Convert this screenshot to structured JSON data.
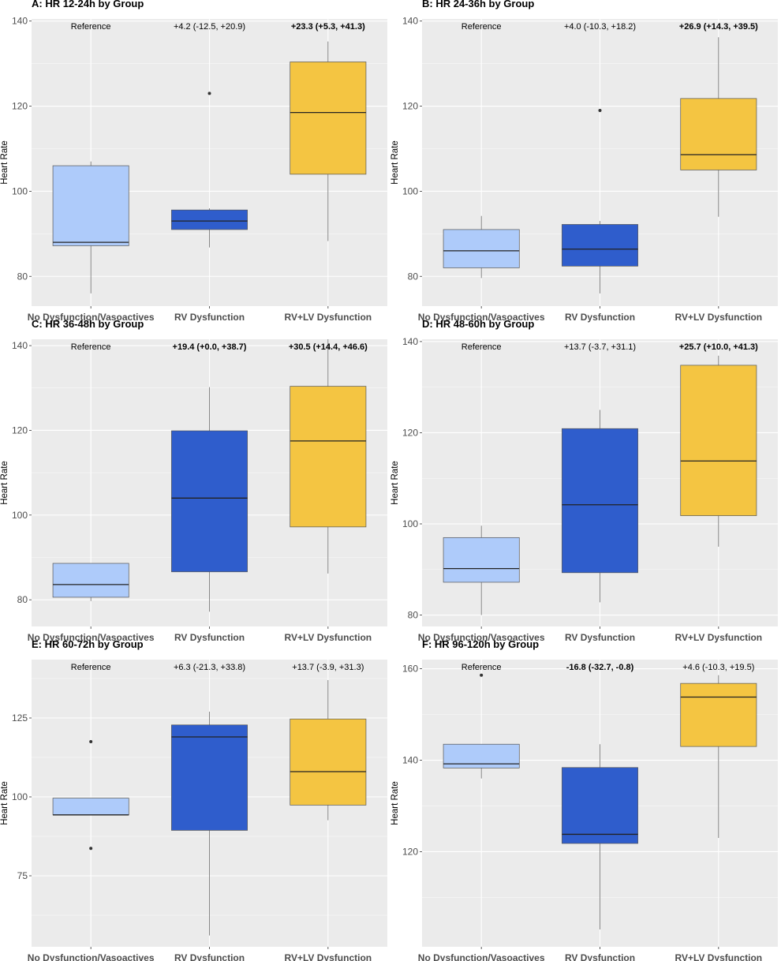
{
  "colors": {
    "panel_bg": "#EBEBEB",
    "grid": "#FFFFFF",
    "groups": [
      "#AECBFA",
      "#2F5DCC",
      "#F4C542"
    ],
    "box_border": "#555555",
    "whisker": "#555555"
  },
  "chart_data": [
    {
      "type": "box",
      "title": "A: HR 12-24h by Group",
      "ylabel": "Heart Rate",
      "ylim": [
        73,
        140.5
      ],
      "yticks": [
        80,
        100,
        120,
        140
      ],
      "categories": [
        "No Dysfunction/Vasoactives",
        "RV Dysfunction",
        "RV+LV Dysfunction"
      ],
      "annotations": [
        {
          "text": "Reference",
          "bold": false
        },
        {
          "text": "+4.2 (-12.5, +20.9)",
          "bold": false
        },
        {
          "text": "+23.3 (+5.3, +41.3)",
          "bold": true
        }
      ],
      "boxes": [
        {
          "low": 76,
          "q1": 87.2,
          "median": 88,
          "q3": 106,
          "high": 107,
          "outliers": []
        },
        {
          "low": 86.8,
          "q1": 91,
          "median": 93,
          "q3": 95.6,
          "high": 96,
          "outliers": [
            123
          ]
        },
        {
          "low": 88.3,
          "q1": 104,
          "median": 118.5,
          "q3": 130.4,
          "high": 135.2,
          "outliers": []
        }
      ]
    },
    {
      "type": "box",
      "title": "B: HR 24-36h by Group",
      "ylabel": "Heart Rate",
      "ylim": [
        73,
        140.5
      ],
      "yticks": [
        80,
        100,
        120,
        140
      ],
      "categories": [
        "No Dysfunction/Vasoactives",
        "RV Dysfunction",
        "RV+LV Dysfunction"
      ],
      "annotations": [
        {
          "text": "Reference",
          "bold": false
        },
        {
          "text": "+4.0 (-10.3, +18.2)",
          "bold": false
        },
        {
          "text": "+26.9 (+14.3, +39.5)",
          "bold": true
        }
      ],
      "boxes": [
        {
          "low": 79.6,
          "q1": 82,
          "median": 86,
          "q3": 91,
          "high": 94.2,
          "outliers": []
        },
        {
          "low": 76,
          "q1": 82.4,
          "median": 86.4,
          "q3": 92.2,
          "high": 93,
          "outliers": [
            119
          ]
        },
        {
          "low": 94,
          "q1": 105,
          "median": 108.6,
          "q3": 121.8,
          "high": 136.2,
          "outliers": []
        }
      ]
    },
    {
      "type": "box",
      "title": "C: HR 36-48h by Group",
      "ylabel": "Heart Rate",
      "ylim": [
        73.7,
        141.5
      ],
      "yticks": [
        80,
        100,
        120,
        140
      ],
      "categories": [
        "No Dysfunction/Vasoactives",
        "RV Dysfunction",
        "RV+LV Dysfunction"
      ],
      "annotations": [
        {
          "text": "Reference",
          "bold": false
        },
        {
          "text": "+19.4 (+0.0, +38.7)",
          "bold": true
        },
        {
          "text": "+30.5 (+14.4, +46.6)",
          "bold": true
        }
      ],
      "boxes": [
        {
          "low": 79.7,
          "q1": 80.6,
          "median": 83.6,
          "q3": 88.6,
          "high": 88.6,
          "outliers": []
        },
        {
          "low": 77.2,
          "q1": 86.6,
          "median": 104,
          "q3": 119.9,
          "high": 130.2,
          "outliers": []
        },
        {
          "low": 86.2,
          "q1": 97.2,
          "median": 117.5,
          "q3": 130.4,
          "high": 141.5,
          "outliers": []
        }
      ]
    },
    {
      "type": "box",
      "title": "D: HR 48-60h by Group",
      "ylabel": "Heart Rate",
      "ylim": [
        77.5,
        140.5
      ],
      "yticks": [
        80,
        100,
        120,
        140
      ],
      "categories": [
        "No Dysfunction/Vasoactives",
        "RV Dysfunction",
        "RV+LV Dysfunction"
      ],
      "annotations": [
        {
          "text": "Reference",
          "bold": false
        },
        {
          "text": "+13.7 (-3.7, +31.1)",
          "bold": false
        },
        {
          "text": "+25.7 (+10.0, +41.3)",
          "bold": true
        }
      ],
      "boxes": [
        {
          "low": 80,
          "q1": 87.2,
          "median": 90.2,
          "q3": 97,
          "high": 99.6,
          "outliers": []
        },
        {
          "low": 82.8,
          "q1": 89.3,
          "median": 104.2,
          "q3": 120.9,
          "high": 125,
          "outliers": []
        },
        {
          "low": 95,
          "q1": 101.8,
          "median": 113.8,
          "q3": 134.8,
          "high": 136.9,
          "outliers": []
        }
      ]
    },
    {
      "type": "box",
      "title": "E: HR 60-72h by Group",
      "ylabel": "Heart Rate",
      "ylim": [
        52.5,
        143.5
      ],
      "yticks": [
        75,
        100,
        125
      ],
      "categories": [
        "No Dysfunction/Vasoactives",
        "RV Dysfunction",
        "RV+LV Dysfunction"
      ],
      "annotations": [
        {
          "text": "Reference",
          "bold": false
        },
        {
          "text": "+6.3 (-21.3, +33.8)",
          "bold": false
        },
        {
          "text": "+13.7 (-3.9, +31.3)",
          "bold": false
        }
      ],
      "boxes": [
        {
          "low": 94.3,
          "q1": 94.3,
          "median": 94.3,
          "q3": 99.6,
          "high": 99.6,
          "outliers": [
            117.5,
            83.7
          ]
        },
        {
          "low": 56.1,
          "q1": 89.4,
          "median": 119,
          "q3": 122.8,
          "high": 127,
          "outliers": []
        },
        {
          "low": 92.6,
          "q1": 97.4,
          "median": 108,
          "q3": 124.7,
          "high": 137,
          "outliers": []
        }
      ]
    },
    {
      "type": "box",
      "title": "F: HR 96-120h by Group",
      "ylabel": "Heart Rate",
      "ylim": [
        99.2,
        162
      ],
      "yticks": [
        120,
        140,
        160
      ],
      "categories": [
        "No Dysfunction/Vasoactives",
        "RV Dysfunction",
        "RV+LV Dysfunction"
      ],
      "annotations": [
        {
          "text": "Reference",
          "bold": false
        },
        {
          "text": "-16.8 (-32.7, -0.8)",
          "bold": true
        },
        {
          "text": "+4.6 (-10.3, +19.5)",
          "bold": false
        }
      ],
      "boxes": [
        {
          "low": 136,
          "q1": 138.3,
          "median": 139.2,
          "q3": 143.5,
          "high": 143.5,
          "outliers": [
            158.6
          ]
        },
        {
          "low": 103,
          "q1": 121.8,
          "median": 123.8,
          "q3": 138.4,
          "high": 143.5,
          "outliers": []
        },
        {
          "low": 123,
          "q1": 143,
          "median": 153.8,
          "q3": 156.8,
          "high": 158.6,
          "outliers": []
        }
      ]
    }
  ]
}
